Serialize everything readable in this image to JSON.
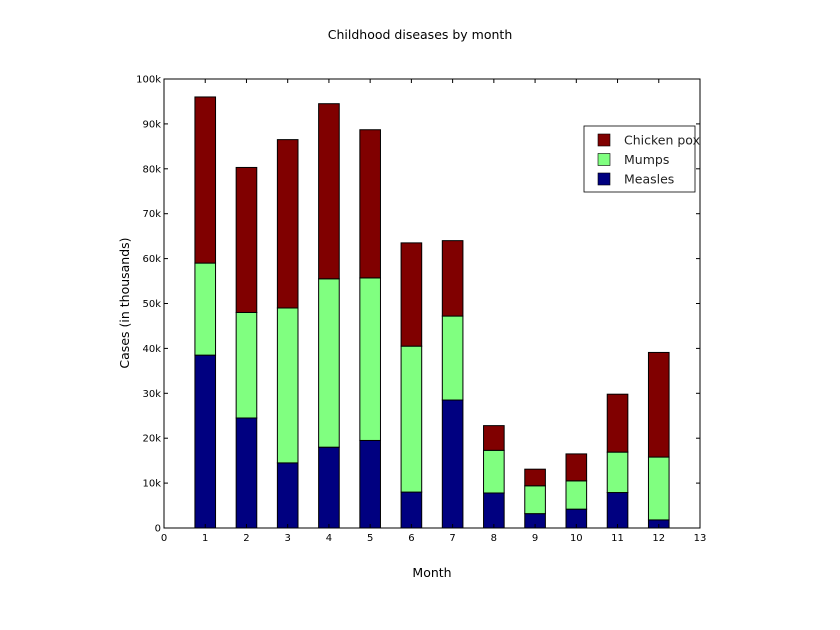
{
  "chart_data": {
    "type": "bar",
    "stacked": true,
    "title": "Childhood diseases by month",
    "xlabel": "Month",
    "ylabel": "Cases (in thousands)",
    "x": [
      1,
      2,
      3,
      4,
      5,
      6,
      7,
      8,
      9,
      10,
      11,
      12
    ],
    "xlim": [
      0,
      13
    ],
    "xticks": [
      "0",
      "1",
      "2",
      "3",
      "4",
      "5",
      "6",
      "7",
      "8",
      "9",
      "10",
      "11",
      "12",
      "13"
    ],
    "ylim": [
      0,
      100000
    ],
    "yticks": [
      "0",
      "10k",
      "20k",
      "30k",
      "40k",
      "50k",
      "60k",
      "70k",
      "80k",
      "90k",
      "100k"
    ],
    "legend_position": "upper-right",
    "series": [
      {
        "name": "Measles",
        "color": "#000080",
        "values": [
          38500,
          24500,
          14500,
          18000,
          19500,
          8000,
          28500,
          7800,
          3200,
          4200,
          7900,
          1800
        ]
      },
      {
        "name": "Mumps",
        "color": "#80ff80",
        "values": [
          20500,
          23500,
          34500,
          37500,
          36200,
          32500,
          18700,
          9500,
          6200,
          6300,
          9000,
          14000
        ]
      },
      {
        "name": "Chicken pox",
        "color": "#800000",
        "values": [
          37000,
          32300,
          37500,
          39000,
          33000,
          23000,
          16800,
          5500,
          3700,
          6000,
          12900,
          23300
        ]
      }
    ],
    "legend_order": [
      "Chicken pox",
      "Mumps",
      "Measles"
    ]
  }
}
